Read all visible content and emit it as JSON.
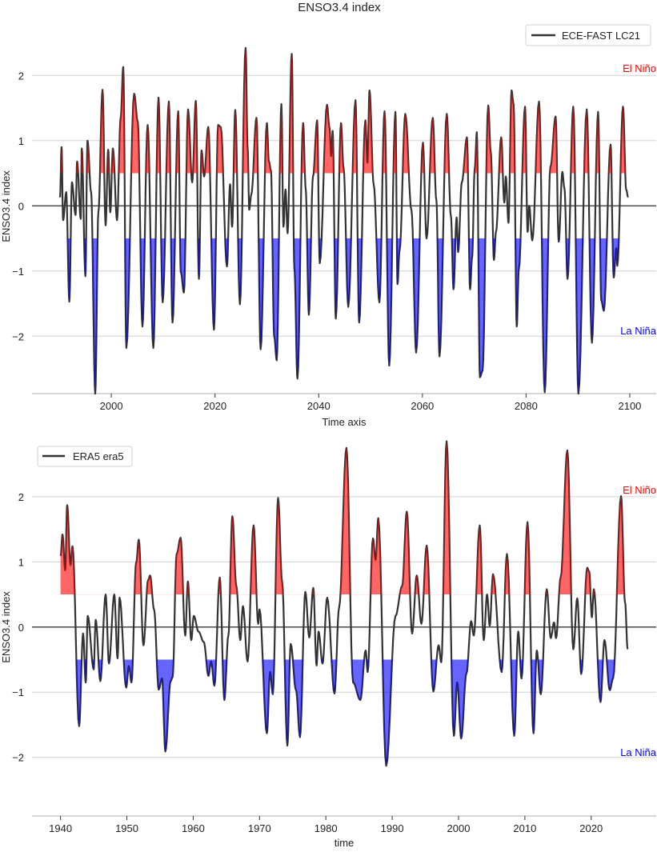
{
  "colors": {
    "line": "#333333",
    "el_nino_fill": "#ff0000",
    "la_nina_fill": "#0000ff",
    "el_nino_text": "#ff0000",
    "la_nina_text": "#0000ff",
    "grid": "#d0d0d0",
    "zero_line": "#555555"
  },
  "chart_data": [
    {
      "type": "line",
      "title": "ENSO3.4 index",
      "xlabel": "Time axis",
      "ylabel": "ENSO3.4 index",
      "legend": {
        "label": "ECE-FAST LC21",
        "placement": "top-right"
      },
      "annotations": {
        "el_nino": "El Niño",
        "la_nina": "La Niña"
      },
      "thresholds": [
        0.5,
        -0.5
      ],
      "grid": true,
      "xlim": [
        1984.7,
        2105.1
      ],
      "ylim": [
        -2.88,
        2.85
      ],
      "xticks": [
        2000,
        2020,
        2040,
        2060,
        2080,
        2100
      ],
      "yticks": [
        -2,
        -1,
        0,
        1,
        2
      ],
      "points": [
        [
          1990.1,
          0.13
        ],
        [
          1990.4,
          0.9
        ],
        [
          1990.7,
          -0.22
        ],
        [
          1991.3,
          0.21
        ],
        [
          1991.9,
          -1.47
        ],
        [
          1992.4,
          0.36
        ],
        [
          1993.1,
          -0.14
        ],
        [
          1993.4,
          0.68
        ],
        [
          1994.1,
          -0.2
        ],
        [
          1994.3,
          0.88
        ],
        [
          1995.0,
          -1.08
        ],
        [
          1995.4,
          1.0
        ],
        [
          1996.1,
          0.21
        ],
        [
          1996.9,
          -2.88
        ],
        [
          1997.5,
          -0.1
        ],
        [
          1998.3,
          1.78
        ],
        [
          1998.9,
          -0.3
        ],
        [
          1999.4,
          0.86
        ],
        [
          1999.8,
          -0.1
        ],
        [
          2000.3,
          0.88
        ],
        [
          2001.1,
          -0.22
        ],
        [
          2001.8,
          1.35
        ],
        [
          2002.3,
          2.13
        ],
        [
          2002.9,
          -2.18
        ],
        [
          2004.4,
          1.72
        ],
        [
          2005.1,
          1.29
        ],
        [
          2006.0,
          -1.85
        ],
        [
          2007.0,
          1.24
        ],
        [
          2008.1,
          -2.18
        ],
        [
          2009.1,
          1.66
        ],
        [
          2009.9,
          -1.48
        ],
        [
          2011.1,
          1.6
        ],
        [
          2011.8,
          -1.79
        ],
        [
          2012.9,
          1.45
        ],
        [
          2013.4,
          -1.02
        ],
        [
          2014.0,
          -1.33
        ],
        [
          2014.8,
          1.48
        ],
        [
          2015.6,
          0.36
        ],
        [
          2016.3,
          1.61
        ],
        [
          2016.9,
          -1.12
        ],
        [
          2017.4,
          0.85
        ],
        [
          2017.9,
          0.45
        ],
        [
          2018.7,
          1.21
        ],
        [
          2019.8,
          -1.9
        ],
        [
          2020.6,
          1.24
        ],
        [
          2021.1,
          1.21
        ],
        [
          2022.3,
          -0.93
        ],
        [
          2022.9,
          0.33
        ],
        [
          2023.3,
          -0.32
        ],
        [
          2023.9,
          1.47
        ],
        [
          2024.8,
          -1.51
        ],
        [
          2025.9,
          2.42
        ],
        [
          2026.3,
          0.88
        ],
        [
          2026.6,
          -0.06
        ],
        [
          2027.0,
          0.17
        ],
        [
          2028.0,
          1.35
        ],
        [
          2028.8,
          -2.2
        ],
        [
          2030.0,
          1.27
        ],
        [
          2030.4,
          0.68
        ],
        [
          2030.8,
          0.54
        ],
        [
          2031.4,
          -2.0
        ],
        [
          2031.9,
          -2.37
        ],
        [
          2032.8,
          1.56
        ],
        [
          2033.2,
          -0.32
        ],
        [
          2033.6,
          0.25
        ],
        [
          2034.0,
          -0.42
        ],
        [
          2034.8,
          2.33
        ],
        [
          2035.3,
          -0.96
        ],
        [
          2035.9,
          -2.65
        ],
        [
          2037.0,
          1.27
        ],
        [
          2037.5,
          0.25
        ],
        [
          2038.1,
          -1.67
        ],
        [
          2038.9,
          0.45
        ],
        [
          2039.7,
          1.31
        ],
        [
          2040.2,
          -0.88
        ],
        [
          2041.6,
          1.55
        ],
        [
          2042.1,
          1.19
        ],
        [
          2042.4,
          0.76
        ],
        [
          2042.7,
          1.15
        ],
        [
          2043.3,
          -1.73
        ],
        [
          2044.3,
          1.27
        ],
        [
          2044.8,
          0.58
        ],
        [
          2045.7,
          -1.55
        ],
        [
          2047.1,
          1.62
        ],
        [
          2047.8,
          -1.79
        ],
        [
          2049.0,
          1.31
        ],
        [
          2049.4,
          0.66
        ],
        [
          2049.8,
          1.77
        ],
        [
          2050.6,
          0.33
        ],
        [
          2051.7,
          -1.48
        ],
        [
          2052.7,
          1.45
        ],
        [
          2053.6,
          -2.45
        ],
        [
          2054.8,
          1.44
        ],
        [
          2055.2,
          -1.2
        ],
        [
          2055.6,
          -0.69
        ],
        [
          2056.7,
          1.41
        ],
        [
          2057.9,
          -0.07
        ],
        [
          2058.8,
          -2.25
        ],
        [
          2060.1,
          0.97
        ],
        [
          2060.8,
          -0.5
        ],
        [
          2062.0,
          1.35
        ],
        [
          2062.7,
          0.09
        ],
        [
          2063.3,
          -2.31
        ],
        [
          2064.7,
          1.41
        ],
        [
          2065.5,
          -0.16
        ],
        [
          2066.0,
          -1.28
        ],
        [
          2066.6,
          -0.18
        ],
        [
          2066.9,
          -0.71
        ],
        [
          2067.6,
          0.36
        ],
        [
          2068.6,
          1.05
        ],
        [
          2069.2,
          -1.28
        ],
        [
          2069.6,
          -0.79
        ],
        [
          2070.1,
          0.58
        ],
        [
          2070.5,
          1.13
        ],
        [
          2071.1,
          -2.63
        ],
        [
          2071.6,
          -2.53
        ],
        [
          2072.7,
          1.54
        ],
        [
          2073.2,
          0.82
        ],
        [
          2073.8,
          -0.83
        ],
        [
          2074.2,
          -0.4
        ],
        [
          2075.2,
          1.05
        ],
        [
          2075.8,
          0.05
        ],
        [
          2076.1,
          0.45
        ],
        [
          2076.6,
          -0.26
        ],
        [
          2077.2,
          1.77
        ],
        [
          2077.6,
          1.56
        ],
        [
          2078.2,
          -1.85
        ],
        [
          2078.6,
          -0.98
        ],
        [
          2079.8,
          1.52
        ],
        [
          2080.3,
          -0.4
        ],
        [
          2080.6,
          0.0
        ],
        [
          2081.2,
          -0.53
        ],
        [
          2082.5,
          1.6
        ],
        [
          2083.6,
          -2.86
        ],
        [
          2084.7,
          0.6
        ],
        [
          2085.7,
          1.37
        ],
        [
          2086.3,
          -0.55
        ],
        [
          2087.0,
          0.52
        ],
        [
          2087.4,
          0.27
        ],
        [
          2088.0,
          -1.12
        ],
        [
          2089.1,
          1.52
        ],
        [
          2090.1,
          -2.88
        ],
        [
          2091.7,
          1.48
        ],
        [
          2092.7,
          -2.1
        ],
        [
          2093.9,
          1.44
        ],
        [
          2094.5,
          -1.45
        ],
        [
          2095.0,
          -1.61
        ],
        [
          2096.3,
          0.94
        ],
        [
          2096.9,
          -1.1
        ],
        [
          2097.4,
          -0.65
        ],
        [
          2097.6,
          -0.92
        ],
        [
          2098.7,
          1.52
        ],
        [
          2099.3,
          0.25
        ],
        [
          2099.7,
          0.13
        ]
      ]
    },
    {
      "type": "line",
      "title": "",
      "xlabel": "time",
      "ylabel": "ENSO3.4 index",
      "legend": {
        "label": "ERA5 era5",
        "placement": "top-left"
      },
      "annotations": {
        "el_nino": "El Niño",
        "la_nina": "La Niña"
      },
      "thresholds": [
        0.5,
        -0.5
      ],
      "grid": true,
      "xlim": [
        1935.7,
        2029.8
      ],
      "ylim": [
        -2.9,
        2.87
      ],
      "xticks": [
        1940,
        1950,
        1960,
        1970,
        1980,
        1990,
        2000,
        2010,
        2020
      ],
      "yticks": [
        -2,
        -1,
        0,
        1,
        2
      ],
      "points": [
        [
          1940.0,
          1.09
        ],
        [
          1940.3,
          1.42
        ],
        [
          1940.7,
          0.87
        ],
        [
          1941.0,
          1.87
        ],
        [
          1941.5,
          0.95
        ],
        [
          1941.8,
          1.24
        ],
        [
          1942.8,
          -1.52
        ],
        [
          1943.4,
          -0.1
        ],
        [
          1943.8,
          -0.85
        ],
        [
          1944.1,
          0.17
        ],
        [
          1945.0,
          -0.65
        ],
        [
          1945.3,
          0.11
        ],
        [
          1946.0,
          -0.83
        ],
        [
          1946.8,
          0.5
        ],
        [
          1947.3,
          -0.56
        ],
        [
          1948.1,
          0.5
        ],
        [
          1948.6,
          -0.48
        ],
        [
          1948.9,
          0.45
        ],
        [
          1949.9,
          -0.93
        ],
        [
          1950.3,
          -0.6
        ],
        [
          1950.7,
          -0.85
        ],
        [
          1951.4,
          0.99
        ],
        [
          1951.8,
          1.34
        ],
        [
          1952.5,
          -0.28
        ],
        [
          1953.2,
          0.72
        ],
        [
          1953.5,
          0.79
        ],
        [
          1954.1,
          0.27
        ],
        [
          1954.8,
          -0.96
        ],
        [
          1955.3,
          -0.79
        ],
        [
          1955.8,
          -1.91
        ],
        [
          1956.6,
          -0.83
        ],
        [
          1956.9,
          -0.77
        ],
        [
          1957.5,
          1.12
        ],
        [
          1958.1,
          1.37
        ],
        [
          1958.8,
          -0.13
        ],
        [
          1959.2,
          0.7
        ],
        [
          1959.7,
          -0.2
        ],
        [
          1960.1,
          0.17
        ],
        [
          1960.8,
          -0.07
        ],
        [
          1961.6,
          -0.23
        ],
        [
          1962.3,
          -0.75
        ],
        [
          1962.7,
          -0.53
        ],
        [
          1963.2,
          -0.9
        ],
        [
          1964.0,
          0.76
        ],
        [
          1964.7,
          -1.12
        ],
        [
          1965.3,
          -0.13
        ],
        [
          1965.9,
          1.7
        ],
        [
          1966.5,
          0.63
        ],
        [
          1967.1,
          -0.2
        ],
        [
          1967.5,
          0.32
        ],
        [
          1968.2,
          -0.53
        ],
        [
          1969.1,
          1.56
        ],
        [
          1969.8,
          0.05
        ],
        [
          1970.0,
          0.27
        ],
        [
          1971.1,
          -1.63
        ],
        [
          1971.6,
          -0.69
        ],
        [
          1972.0,
          -1.03
        ],
        [
          1972.8,
          1.98
        ],
        [
          1973.4,
          0.7
        ],
        [
          1974.2,
          -1.82
        ],
        [
          1974.7,
          -0.26
        ],
        [
          1975.5,
          -0.97
        ],
        [
          1976.1,
          -1.69
        ],
        [
          1976.9,
          0.54
        ],
        [
          1977.5,
          -0.16
        ],
        [
          1978.1,
          0.6
        ],
        [
          1978.6,
          -0.59
        ],
        [
          1978.9,
          -0.07
        ],
        [
          1979.5,
          -0.56
        ],
        [
          1980.2,
          0.45
        ],
        [
          1981.3,
          -1.02
        ],
        [
          1982.0,
          0.3
        ],
        [
          1983.1,
          2.75
        ],
        [
          1984.1,
          -0.85
        ],
        [
          1985.2,
          -1.12
        ],
        [
          1986.0,
          -0.36
        ],
        [
          1986.3,
          -0.69
        ],
        [
          1987.1,
          1.36
        ],
        [
          1987.5,
          1.03
        ],
        [
          1987.9,
          1.67
        ],
        [
          1989.1,
          -2.13
        ],
        [
          1990.5,
          0.17
        ],
        [
          1991.5,
          0.63
        ],
        [
          1992.2,
          1.77
        ],
        [
          1993.0,
          -0.1
        ],
        [
          1993.7,
          0.79
        ],
        [
          1994.4,
          0.05
        ],
        [
          1995.2,
          1.25
        ],
        [
          1996.2,
          -0.99
        ],
        [
          1997.0,
          -0.28
        ],
        [
          1997.4,
          -0.54
        ],
        [
          1998.2,
          2.85
        ],
        [
          1999.3,
          -1.67
        ],
        [
          1999.8,
          -0.85
        ],
        [
          2000.4,
          -1.71
        ],
        [
          2001.2,
          -0.71
        ],
        [
          2001.9,
          0.09
        ],
        [
          2002.3,
          -0.13
        ],
        [
          2003.2,
          1.56
        ],
        [
          2003.8,
          -0.2
        ],
        [
          2004.3,
          0.5
        ],
        [
          2004.7,
          0.02
        ],
        [
          2005.2,
          0.81
        ],
        [
          2006.5,
          -0.69
        ],
        [
          2007.3,
          1.12
        ],
        [
          2008.4,
          -1.67
        ],
        [
          2009.0,
          -0.07
        ],
        [
          2009.5,
          -0.79
        ],
        [
          2010.4,
          1.61
        ],
        [
          2011.3,
          -1.63
        ],
        [
          2011.8,
          -0.36
        ],
        [
          2012.4,
          -1.03
        ],
        [
          2013.3,
          0.58
        ],
        [
          2013.9,
          -0.17
        ],
        [
          2014.4,
          0.07
        ],
        [
          2014.7,
          -0.17
        ],
        [
          2015.4,
          0.76
        ],
        [
          2016.4,
          2.71
        ],
        [
          2017.3,
          -0.34
        ],
        [
          2017.9,
          0.44
        ],
        [
          2018.5,
          -0.72
        ],
        [
          2019.4,
          0.91
        ],
        [
          2019.7,
          0.85
        ],
        [
          2020.1,
          0.15
        ],
        [
          2020.4,
          0.58
        ],
        [
          2021.4,
          -1.15
        ],
        [
          2022.0,
          -0.2
        ],
        [
          2022.8,
          -0.97
        ],
        [
          2023.3,
          -0.79
        ],
        [
          2024.5,
          2.01
        ],
        [
          2025.1,
          0.38
        ],
        [
          2025.5,
          -0.34
        ]
      ]
    }
  ]
}
